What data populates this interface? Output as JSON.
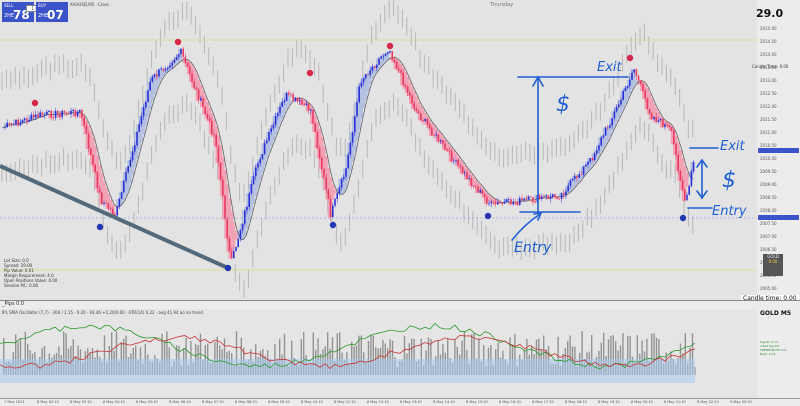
{
  "trade_panel": {
    "sell_label": "SELL",
    "buy_label": "BUY",
    "sell_small": "2HE",
    "buy_small": "2HE",
    "sell_price": "78",
    "sell_sup": "8",
    "buy_price": "07",
    "buy_sup": "9",
    "lot_value": "1.00"
  },
  "title": "XAUUSD,M5 · Cross",
  "day_label": "Thursday",
  "account_readout": "29.0",
  "candle_time_top": "Candle Time: 0.00",
  "candle_time": "Candle time: 0.00",
  "info_panel": {
    "rows": [
      "Lot Size: 0.0",
      "Spread: 29.00",
      "Pip Value: 0.01",
      "Margin Requirement: 4.0",
      "Open Positions Value: 0.00",
      "Session P/L: 0.00"
    ]
  },
  "gold_box": {
    "line1": "GOLD",
    "line2": "0.00"
  },
  "annotations": {
    "entry1": "Entry",
    "exit1": "Exit",
    "dollar1": "$",
    "exit2": "Exit",
    "dollar2": "$",
    "entry2": "Entry"
  },
  "subwindow": {
    "label": "_Pips 0.0",
    "indicator_text": "IPL SMA Oscillator (7,7) · 304 / 1.15 · 0.20 · 93.46 +1.20/0.00 · ATR(14) 0.22 · avg 41.94 ao no trend",
    "symbol": "GOLD M5",
    "legend": [
      "Signal: 0.14",
      "+Bull Sig 0.0",
      "TRENDWIDTH 0.0",
      "Bear: 0.14"
    ]
  },
  "price_ticks": [
    "2015.00",
    "2014.50",
    "2014.00",
    "2013.50",
    "2013.00",
    "2012.50",
    "2012.00",
    "2011.50",
    "2011.00",
    "2010.50",
    "2010.00",
    "2009.50",
    "2009.00",
    "2008.50",
    "2008.00",
    "2007.50",
    "2007.00",
    "2006.50",
    "2006.00",
    "2005.50",
    "2005.00"
  ],
  "time_ticks": [
    "7 May 2024",
    "8 May 02:10",
    "8 May 03:10",
    "8 May 04:10",
    "8 May 05:10",
    "8 May 06:10",
    "8 May 07:10",
    "8 May 08:10",
    "8 May 09:10",
    "8 May 10:10",
    "8 May 11:10",
    "8 May 12:10",
    "8 May 13:10",
    "8 May 14:10",
    "8 May 15:10",
    "8 May 16:10",
    "8 May 17:10",
    "8 May 18:10",
    "8 May 19:10",
    "8 May 20:10",
    "8 May 21:10",
    "8 May 22:10",
    "9 May 00:10"
  ],
  "colors": {
    "bull": "#2b2fd6",
    "bear": "#e8395f",
    "bull_fill": "#aebde0",
    "bear_fill": "#f39bb0",
    "cloud": "#9a9a9a",
    "annotation": "#1f5fd1",
    "trendline": "#546a7a"
  },
  "chart_data": {
    "type": "candlestick",
    "overlays": [
      "moving-average ribbon",
      "price envelope bands",
      "support trendline"
    ],
    "markers": {
      "tops": 6,
      "bottoms": 6
    }
  }
}
